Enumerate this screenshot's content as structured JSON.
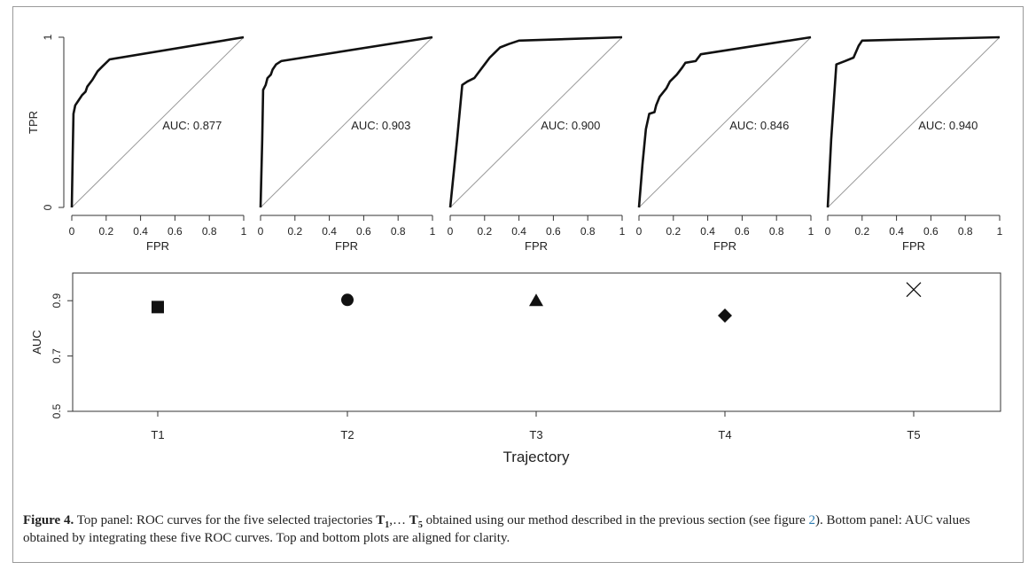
{
  "colors": {
    "curve": "#111111",
    "diagonal": "#9a9a9a",
    "axis": "#333333",
    "text": "#222222",
    "link": "#2a7ab0",
    "frame": "#9a9a9a"
  },
  "chart_data": [
    {
      "type": "line",
      "panel": "roc",
      "xlabel": "FPR",
      "ylabel": "TPR",
      "xlim": [
        0,
        1
      ],
      "ylim": [
        0,
        1
      ],
      "xticks": [
        "0",
        "0.2",
        "0.4",
        "0.6",
        "0.8",
        "1"
      ],
      "yticks": [
        "0",
        "1"
      ],
      "diagonal_reference": true,
      "series": [
        {
          "annotation": "AUC: 0.877",
          "points": [
            [
              0,
              0
            ],
            [
              0.005,
              0.3
            ],
            [
              0.01,
              0.55
            ],
            [
              0.02,
              0.6
            ],
            [
              0.04,
              0.63
            ],
            [
              0.06,
              0.66
            ],
            [
              0.08,
              0.68
            ],
            [
              0.09,
              0.71
            ],
            [
              0.12,
              0.75
            ],
            [
              0.15,
              0.8
            ],
            [
              0.18,
              0.83
            ],
            [
              0.22,
              0.87
            ],
            [
              1,
              1
            ]
          ]
        },
        {
          "annotation": "AUC: 0.903",
          "points": [
            [
              0,
              0
            ],
            [
              0.01,
              0.4
            ],
            [
              0.015,
              0.69
            ],
            [
              0.03,
              0.72
            ],
            [
              0.04,
              0.76
            ],
            [
              0.06,
              0.78
            ],
            [
              0.07,
              0.81
            ],
            [
              0.09,
              0.84
            ],
            [
              0.12,
              0.86
            ],
            [
              1,
              1
            ]
          ]
        },
        {
          "annotation": "AUC: 0.900",
          "points": [
            [
              0,
              0
            ],
            [
              0.04,
              0.4
            ],
            [
              0.07,
              0.72
            ],
            [
              0.1,
              0.74
            ],
            [
              0.14,
              0.76
            ],
            [
              0.17,
              0.8
            ],
            [
              0.2,
              0.84
            ],
            [
              0.23,
              0.88
            ],
            [
              0.26,
              0.91
            ],
            [
              0.29,
              0.94
            ],
            [
              0.34,
              0.96
            ],
            [
              0.4,
              0.98
            ],
            [
              1,
              1
            ]
          ]
        },
        {
          "annotation": "AUC: 0.846",
          "points": [
            [
              0,
              0
            ],
            [
              0.02,
              0.25
            ],
            [
              0.04,
              0.46
            ],
            [
              0.06,
              0.55
            ],
            [
              0.09,
              0.56
            ],
            [
              0.1,
              0.6
            ],
            [
              0.12,
              0.65
            ],
            [
              0.16,
              0.7
            ],
            [
              0.18,
              0.74
            ],
            [
              0.22,
              0.78
            ],
            [
              0.25,
              0.82
            ],
            [
              0.27,
              0.85
            ],
            [
              0.33,
              0.86
            ],
            [
              0.36,
              0.9
            ],
            [
              1,
              1
            ]
          ]
        },
        {
          "annotation": "AUC: 0.940",
          "points": [
            [
              0,
              0
            ],
            [
              0.02,
              0.4
            ],
            [
              0.05,
              0.84
            ],
            [
              0.1,
              0.86
            ],
            [
              0.15,
              0.88
            ],
            [
              0.18,
              0.95
            ],
            [
              0.2,
              0.98
            ],
            [
              1,
              1
            ]
          ]
        }
      ]
    },
    {
      "type": "scatter",
      "panel": "auc",
      "xlabel": "Trajectory",
      "ylabel": "AUC",
      "categories": [
        "T1",
        "T2",
        "T3",
        "T4",
        "T5"
      ],
      "values": [
        0.877,
        0.903,
        0.9,
        0.846,
        0.94
      ],
      "markers": [
        "square",
        "circle",
        "triangle",
        "diamond",
        "cross"
      ],
      "ylim": [
        0.5,
        1.0
      ],
      "yticks": [
        "0.5",
        "0.7",
        "0.9"
      ]
    }
  ],
  "caption": {
    "label": "Figure 4.",
    "text_1": " Top panel: ROC curves for the five selected trajectories ",
    "t": "T",
    "sub_1": "1",
    "text_2": ",…  ",
    "sub_5": "5",
    "text_3": " obtained using our method described in the previous section (see figure ",
    "ref": "2",
    "text_4": "). Bottom panel: AUC values obtained by integrating these five ROC curves. Top and bottom plots are aligned for clarity."
  }
}
